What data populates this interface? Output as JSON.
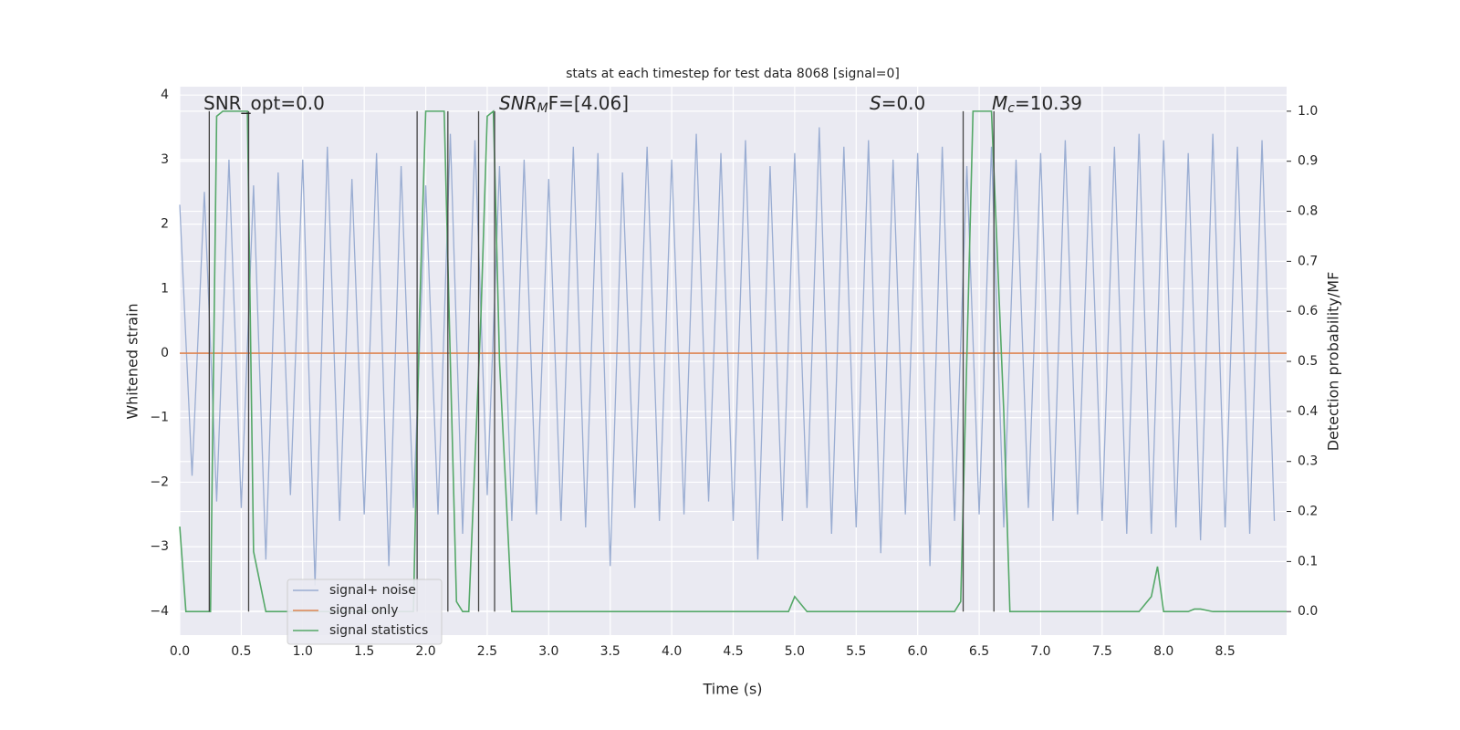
{
  "chart_data": {
    "type": "line",
    "title": "stats at each timestep for test data 8068 [signal=0]",
    "x_label": "Time (s)",
    "y_label": "Whitened strain",
    "y2_label": "Detection probability/MF",
    "xlim": [
      0,
      9.0
    ],
    "ylim": [
      -4.37,
      4.13
    ],
    "y2lim": [
      -0.047,
      1.049
    ],
    "xticks": [
      {
        "value": 0,
        "label": "0.0"
      },
      {
        "value": 0.5,
        "label": "0.5"
      },
      {
        "value": 1,
        "label": "1.0"
      },
      {
        "value": 1.5,
        "label": "1.5"
      },
      {
        "value": 2,
        "label": "2.0"
      },
      {
        "value": 2.5,
        "label": "2.5"
      },
      {
        "value": 3,
        "label": "3.0"
      },
      {
        "value": 3.5,
        "label": "3.5"
      },
      {
        "value": 4,
        "label": "4.0"
      },
      {
        "value": 4.5,
        "label": "4.5"
      },
      {
        "value": 5,
        "label": "5.0"
      },
      {
        "value": 5.5,
        "label": "5.5"
      },
      {
        "value": 6,
        "label": "6.0"
      },
      {
        "value": 6.5,
        "label": "6.5"
      },
      {
        "value": 7,
        "label": "7.0"
      },
      {
        "value": 7.5,
        "label": "7.5"
      },
      {
        "value": 8,
        "label": "8.0"
      },
      {
        "value": 8.5,
        "label": "8.5"
      }
    ],
    "yticks": [
      {
        "value": -4,
        "label": "−4"
      },
      {
        "value": -3,
        "label": "−3"
      },
      {
        "value": -2,
        "label": "−2"
      },
      {
        "value": -1,
        "label": "−1"
      },
      0,
      1,
      2,
      3,
      4
    ],
    "y2ticks": [
      {
        "value": 0,
        "label": "0.0"
      },
      {
        "value": 0.1,
        "label": "0.1"
      },
      {
        "value": 0.2,
        "label": "0.2"
      },
      {
        "value": 0.3,
        "label": "0.3"
      },
      {
        "value": 0.4,
        "label": "0.4"
      },
      {
        "value": 0.5,
        "label": "0.5"
      },
      {
        "value": 0.6,
        "label": "0.6"
      },
      {
        "value": 0.7,
        "label": "0.7"
      },
      {
        "value": 0.8,
        "label": "0.8"
      },
      {
        "value": 0.9,
        "label": "0.9"
      },
      {
        "value": 1,
        "label": "1.0"
      }
    ],
    "grid": true,
    "legend": "lower left",
    "series": [
      {
        "name": "signal+ noise",
        "color": "#9aadd2",
        "x": [
          0,
          0.1,
          0.2,
          0.3,
          0.4,
          0.5,
          0.6,
          0.7,
          0.8,
          0.9,
          1,
          1.1,
          1.2,
          1.3,
          1.4,
          1.5,
          1.6,
          1.7,
          1.8,
          1.9,
          2,
          2.1,
          2.2,
          2.3,
          2.4,
          2.5,
          2.6,
          2.7,
          2.8,
          2.9,
          3,
          3.1,
          3.2,
          3.3,
          3.4,
          3.5,
          3.6,
          3.7,
          3.8,
          3.9,
          4,
          4.1,
          4.2,
          4.3,
          4.4,
          4.5,
          4.6,
          4.7,
          4.8,
          4.9,
          5,
          5.1,
          5.2,
          5.3,
          5.4,
          5.5,
          5.6,
          5.7,
          5.8,
          5.9,
          6,
          6.1,
          6.2,
          6.3,
          6.4,
          6.5,
          6.6,
          6.7,
          6.8,
          6.9,
          7,
          7.1,
          7.2,
          7.3,
          7.4,
          7.5,
          7.6,
          7.7,
          7.8,
          7.9,
          8,
          8.1,
          8.2,
          8.3,
          8.4,
          8.5,
          8.6,
          8.7,
          8.8,
          8.9
        ],
        "values": [
          2.3,
          -1.9,
          2.5,
          -2.3,
          3.0,
          -2.4,
          2.6,
          -3.2,
          2.8,
          -2.2,
          3.0,
          -3.6,
          3.2,
          -2.6,
          2.7,
          -2.5,
          3.1,
          -3.3,
          2.9,
          -2.4,
          2.6,
          -2.5,
          3.4,
          -2.8,
          3.3,
          -2.2,
          2.9,
          -2.6,
          3.0,
          -2.5,
          2.7,
          -2.6,
          3.2,
          -2.7,
          3.1,
          -3.3,
          2.8,
          -2.4,
          3.2,
          -2.6,
          3.0,
          -2.5,
          3.4,
          -2.3,
          3.1,
          -2.6,
          3.3,
          -3.2,
          2.9,
          -2.6,
          3.1,
          -2.4,
          3.5,
          -2.8,
          3.2,
          -2.7,
          3.3,
          -3.1,
          3.0,
          -2.5,
          3.1,
          -3.3,
          3.2,
          -2.6,
          2.9,
          -2.5,
          3.2,
          -2.7,
          3.0,
          -2.4,
          3.1,
          -2.6,
          3.3,
          -2.5,
          2.9,
          -2.6,
          3.2,
          -2.8,
          3.4,
          -2.8,
          3.3,
          -2.7,
          3.1,
          -2.9,
          3.4,
          -2.7,
          3.2,
          -2.8,
          3.3,
          -2.6
        ]
      },
      {
        "name": "signal only",
        "color": "#dd8452",
        "x": [
          0,
          9.0
        ],
        "values": [
          0,
          0
        ]
      },
      {
        "name": "signal statistics",
        "color": "#55a868",
        "axis": "y2",
        "x": [
          0,
          0.05,
          0.25,
          0.3,
          0.35,
          0.55,
          0.6,
          0.7,
          1.9,
          1.95,
          2.0,
          2.15,
          2.2,
          2.25,
          2.3,
          2.35,
          2.45,
          2.5,
          2.55,
          2.6,
          2.7,
          4.95,
          5.0,
          5.1,
          6.3,
          6.35,
          6.45,
          6.6,
          6.7,
          6.75,
          7.8,
          7.9,
          7.95,
          8.0,
          8.2,
          8.25,
          8.3,
          8.4,
          9.0
        ],
        "values": [
          0.17,
          0.0,
          0.0,
          0.99,
          1.0,
          1.0,
          0.12,
          0.0,
          0.0,
          0.6,
          1.0,
          1.0,
          0.5,
          0.02,
          0.0,
          0.0,
          0.6,
          0.99,
          1.0,
          0.5,
          0.0,
          0.0,
          0.03,
          0.0,
          0.0,
          0.02,
          1.0,
          1.0,
          0.4,
          0.0,
          0.0,
          0.03,
          0.09,
          0.0,
          0.0,
          0.005,
          0.005,
          0.0,
          0.0
        ]
      }
    ],
    "markers": {
      "color": "#444444",
      "x": [
        0.24,
        0.56,
        1.93,
        2.18,
        2.43,
        2.56,
        6.37,
        6.62
      ]
    },
    "annotations": [
      {
        "text": "SNR_opt=0.0"
      },
      {
        "base": "SNR",
        "sub": "M",
        "rest": "F=[4.06]"
      },
      {
        "base": "S",
        "rest": "=0.0"
      },
      {
        "base": "M",
        "sub": "c",
        "rest": "=10.39"
      }
    ]
  }
}
